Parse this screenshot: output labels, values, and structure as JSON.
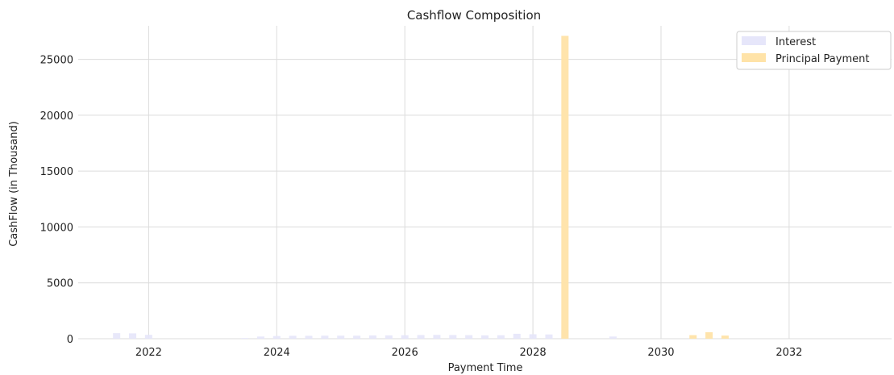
{
  "chart_data": {
    "type": "bar",
    "title": "Cashflow Composition",
    "xlabel": "Payment Time",
    "ylabel": "CashFlow (in Thousand)",
    "xlim": [
      2020.9,
      2033.6
    ],
    "ylim": [
      0,
      28000
    ],
    "xticks": [
      2022,
      2024,
      2026,
      2028,
      2030,
      2032
    ],
    "yticks": [
      0,
      5000,
      10000,
      15000,
      20000,
      25000
    ],
    "grid": true,
    "legend": "top-right",
    "colors": {
      "interest": "#e6e6fa",
      "principal": "#ffe3a8",
      "grid": "#dcdcdc"
    },
    "series": [
      {
        "name": "Interest",
        "points": [
          {
            "x": 2021.5,
            "y": 500
          },
          {
            "x": 2021.75,
            "y": 480
          },
          {
            "x": 2022.0,
            "y": 350
          },
          {
            "x": 2023.5,
            "y": 60
          },
          {
            "x": 2023.75,
            "y": 200
          },
          {
            "x": 2024.0,
            "y": 240
          },
          {
            "x": 2024.25,
            "y": 260
          },
          {
            "x": 2024.5,
            "y": 260
          },
          {
            "x": 2024.75,
            "y": 270
          },
          {
            "x": 2025.0,
            "y": 270
          },
          {
            "x": 2025.25,
            "y": 270
          },
          {
            "x": 2025.5,
            "y": 290
          },
          {
            "x": 2025.75,
            "y": 300
          },
          {
            "x": 2026.0,
            "y": 310
          },
          {
            "x": 2026.25,
            "y": 330
          },
          {
            "x": 2026.5,
            "y": 340
          },
          {
            "x": 2026.75,
            "y": 330
          },
          {
            "x": 2027.0,
            "y": 320
          },
          {
            "x": 2027.25,
            "y": 300
          },
          {
            "x": 2027.5,
            "y": 310
          },
          {
            "x": 2027.75,
            "y": 440
          },
          {
            "x": 2028.0,
            "y": 400
          },
          {
            "x": 2028.25,
            "y": 380
          },
          {
            "x": 2028.5,
            "y": 800
          },
          {
            "x": 2029.25,
            "y": 200
          }
        ]
      },
      {
        "name": "Principal Payment",
        "points": [
          {
            "x": 2028.5,
            "y": 27100
          },
          {
            "x": 2030.5,
            "y": 320
          },
          {
            "x": 2030.75,
            "y": 580
          },
          {
            "x": 2031.0,
            "y": 280
          }
        ]
      }
    ]
  }
}
